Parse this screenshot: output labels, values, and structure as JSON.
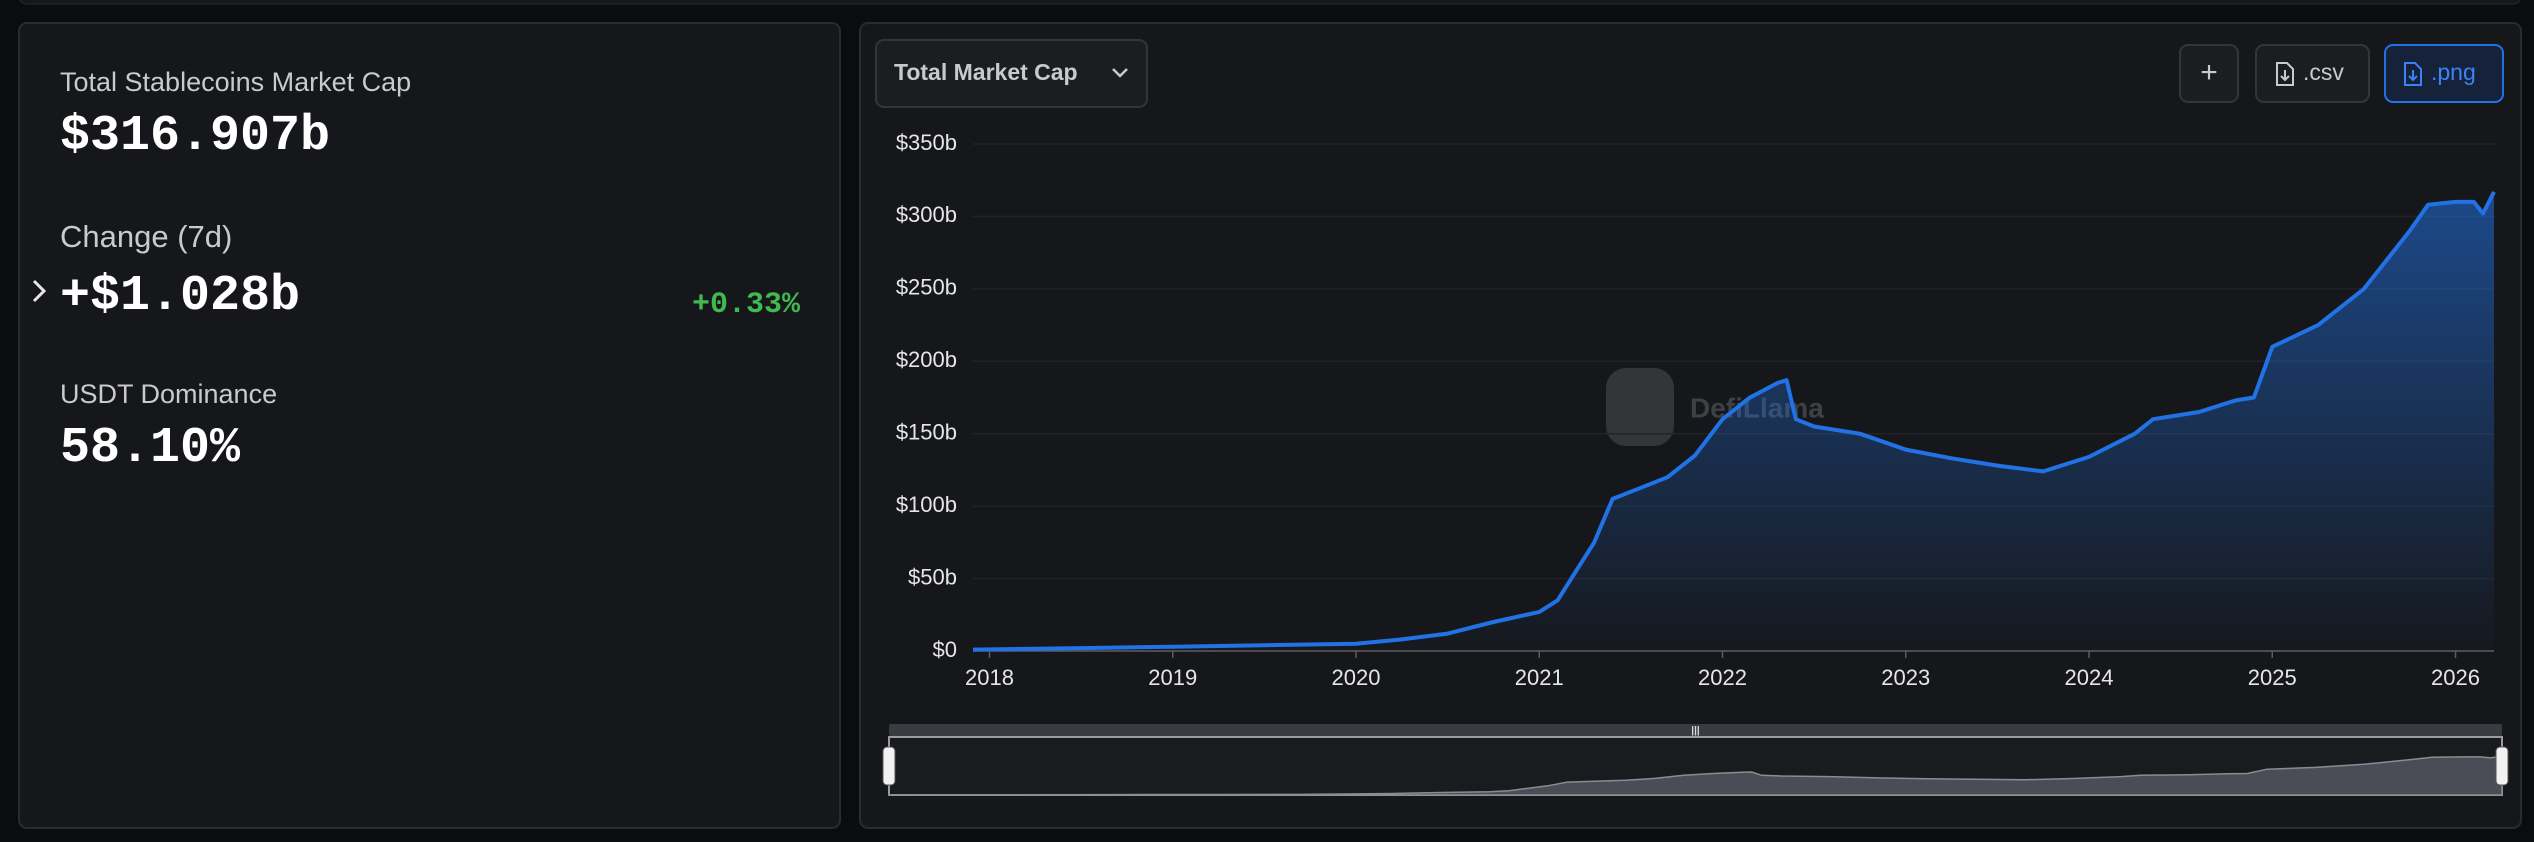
{
  "panel": {
    "stats": [
      {
        "label": "Total Stablecoins Market Cap",
        "value": "$316.907b"
      },
      {
        "label": "Change (7d)",
        "value": "+$1.028b",
        "change": "+0.33%"
      },
      {
        "label": "USDT Dominance",
        "value": "58.10%"
      }
    ]
  },
  "toolbar": {
    "selector": "Total Market Cap",
    "buttons": [
      "+",
      ".csv",
      ".png"
    ]
  },
  "chart_data": {
    "type": "area",
    "watermark": "DefiLlama",
    "color": "#2172e5",
    "grid": true,
    "x": [
      2017.91,
      2018.5,
      2019.0,
      2019.5,
      2020.0,
      2020.25,
      2020.5,
      2020.75,
      2021.0,
      2021.1,
      2021.2,
      2021.3,
      2021.4,
      2021.5,
      2021.7,
      2021.85,
      2022.0,
      2022.15,
      2022.3,
      2022.35,
      2022.4,
      2022.5,
      2022.75,
      2023.0,
      2023.25,
      2023.5,
      2023.75,
      2024.0,
      2024.25,
      2024.35,
      2024.6,
      2024.8,
      2024.9,
      2025.0,
      2025.25,
      2025.5,
      2025.75,
      2025.85,
      2026.0,
      2026.1,
      2026.15,
      2026.21
    ],
    "values": [
      1,
      2,
      3,
      4,
      5,
      8,
      12,
      20,
      27,
      35,
      55,
      75,
      105,
      110,
      120,
      135,
      160,
      175,
      185,
      187,
      160,
      155,
      150,
      139,
      133,
      128,
      124,
      134,
      150,
      160,
      165,
      173,
      175,
      210,
      225,
      250,
      290,
      308,
      310,
      310,
      302,
      316.9
    ],
    "xlim": [
      2017.91,
      2026.21
    ],
    "ylim": [
      0,
      350
    ],
    "xticks": [
      2018,
      2019,
      2020,
      2021,
      2022,
      2023,
      2024,
      2025,
      2026
    ],
    "yticks": [
      {
        "value": 0,
        "label": "$0"
      },
      {
        "value": 50,
        "label": "$50b"
      },
      {
        "value": 100,
        "label": "$100b"
      },
      {
        "value": 150,
        "label": "$150b"
      },
      {
        "value": 200,
        "label": "$200b"
      },
      {
        "value": 250,
        "label": "$250b"
      },
      {
        "value": 300,
        "label": "$300b"
      },
      {
        "value": 350,
        "label": "$350b"
      }
    ]
  }
}
